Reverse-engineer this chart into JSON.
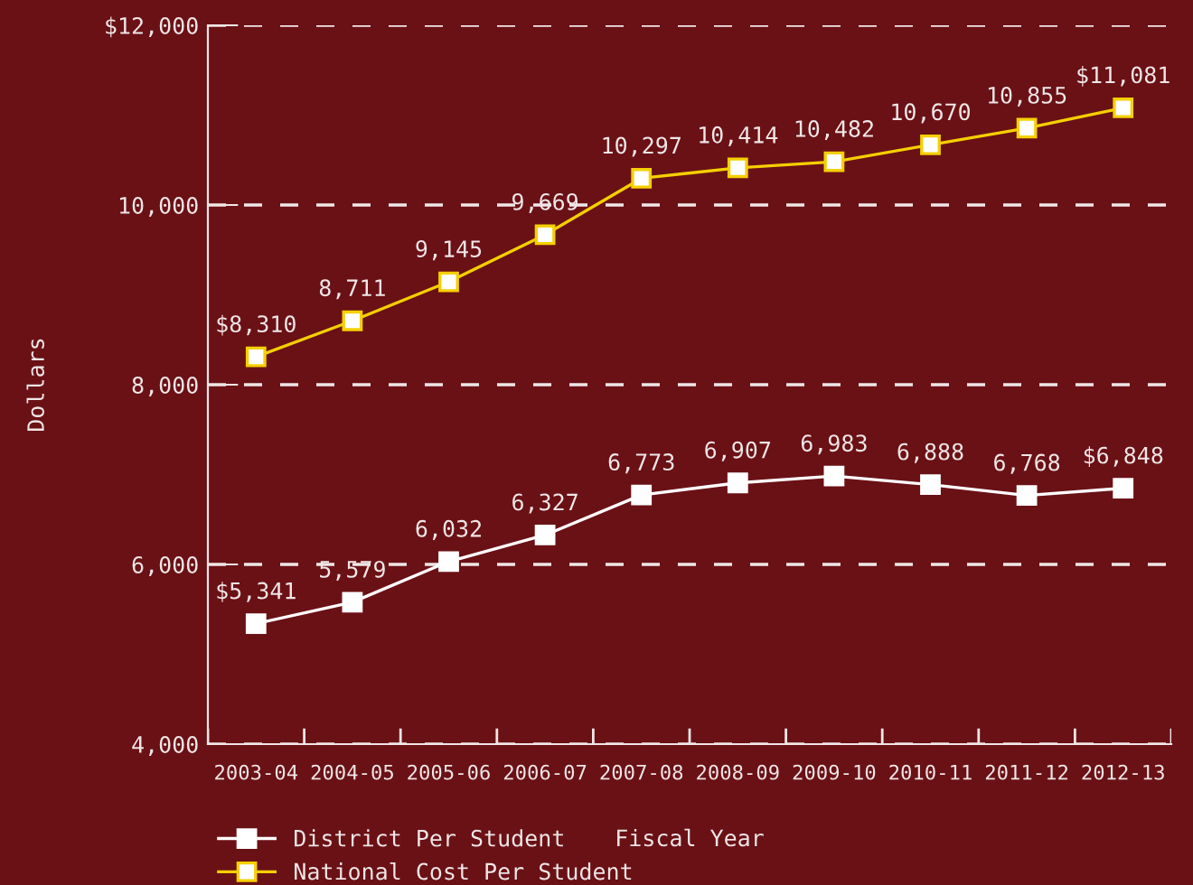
{
  "chart_data": {
    "type": "line",
    "xlabel": "Fiscal Year",
    "ylabel": "Dollars",
    "categories": [
      "2003-04",
      "2004-05",
      "2005-06",
      "2006-07",
      "2007-08",
      "2008-09",
      "2009-10",
      "2010-11",
      "2011-12",
      "2012-13"
    ],
    "series": [
      {
        "name": "District Per Student",
        "color": "#ffffff",
        "values": [
          5341,
          5579,
          6032,
          6327,
          6773,
          6907,
          6983,
          6888,
          6768,
          6848
        ],
        "value_labels": [
          "$5,341",
          "5,579",
          "6,032",
          "6,327",
          "6,773",
          "6,907",
          "6,983",
          "6,888",
          "6,768",
          "$6,848"
        ]
      },
      {
        "name": "National Cost Per Student",
        "color": "#f5d000",
        "values": [
          8310,
          8711,
          9145,
          9669,
          10297,
          10414,
          10482,
          10670,
          10855,
          11081
        ],
        "value_labels": [
          "$8,310",
          "8,711",
          "9,145",
          "9,669",
          "10,297",
          "10,414",
          "10,482",
          "10,670",
          "10,855",
          "$11,081"
        ]
      }
    ],
    "ylim": [
      4000,
      12000
    ],
    "yticks": [
      {
        "value": 4000,
        "label": "4,000"
      },
      {
        "value": 6000,
        "label": "6,000"
      },
      {
        "value": 8000,
        "label": "8,000"
      },
      {
        "value": 10000,
        "label": "10,000"
      },
      {
        "value": 12000,
        "label": "$12,000"
      }
    ],
    "grid": "y",
    "legend": "bottom left",
    "marker": "square",
    "line_style": "solid"
  }
}
